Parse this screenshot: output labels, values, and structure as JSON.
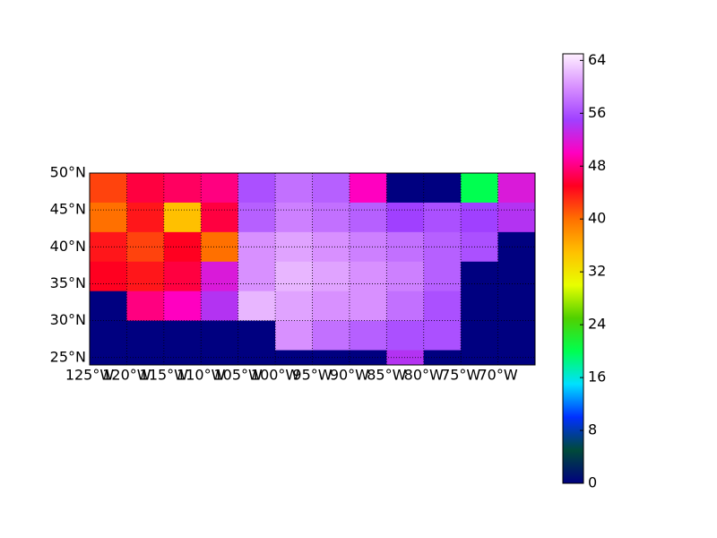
{
  "chart_data": {
    "type": "heatmap-map",
    "xlim": [
      -125,
      -65
    ],
    "ylim": [
      24,
      50
    ],
    "xticks": [
      {
        "value": -125,
        "label": "125°W"
      },
      {
        "value": -120,
        "label": "120°W"
      },
      {
        "value": -115,
        "label": "115°W"
      },
      {
        "value": -110,
        "label": "110°W"
      },
      {
        "value": -105,
        "label": "105°W"
      },
      {
        "value": -100,
        "label": "100°W"
      },
      {
        "value": -95,
        "label": "95°W"
      },
      {
        "value": -90,
        "label": "90°W"
      },
      {
        "value": -85,
        "label": "85°W"
      },
      {
        "value": -80,
        "label": "80°W"
      },
      {
        "value": -75,
        "label": "75°W"
      },
      {
        "value": -70,
        "label": "70°W"
      }
    ],
    "yticks": [
      {
        "value": 25,
        "label": "25°N"
      },
      {
        "value": 30,
        "label": "30°N"
      },
      {
        "value": 35,
        "label": "35°N"
      },
      {
        "value": 40,
        "label": "40°N"
      },
      {
        "value": 45,
        "label": "45°N"
      },
      {
        "value": 50,
        "label": "50°N"
      }
    ],
    "grid": true,
    "lon_edges": [
      -125,
      -120,
      -115,
      -110,
      -105,
      -100,
      -95,
      -90,
      -85,
      -80,
      -75,
      -70,
      -65
    ],
    "lat_edges": [
      50,
      46,
      42,
      38,
      34,
      30,
      26,
      24
    ],
    "values": [
      [
        42,
        46,
        47,
        48,
        56,
        58,
        57,
        50,
        0,
        0,
        20,
        52
      ],
      [
        40,
        44,
        35,
        46,
        57,
        59,
        58,
        57,
        55,
        56,
        55,
        54
      ],
      [
        44,
        42,
        45,
        40,
        60,
        61,
        60,
        59,
        58,
        57,
        56,
        0
      ],
      [
        45,
        44,
        46,
        52,
        60,
        62,
        61,
        60,
        59,
        57,
        0,
        0
      ],
      [
        0,
        48,
        50,
        54,
        62,
        61,
        60,
        60,
        58,
        56,
        0,
        0
      ],
      [
        0,
        0,
        0,
        0,
        0,
        60,
        58,
        57,
        56,
        56,
        0,
        0
      ],
      [
        0,
        0,
        0,
        0,
        0,
        0,
        0,
        0,
        54,
        0,
        0,
        0
      ]
    ],
    "clim": [
      0,
      65
    ],
    "colormap": [
      "#000080",
      "#004a3a",
      "#0030ff",
      "#00e0ff",
      "#00ff50",
      "#50d000",
      "#e8ff00",
      "#ffc000",
      "#ff7000",
      "#ff0020",
      "#ff00c0",
      "#a040ff",
      "#d890ff",
      "#fff0ff"
    ],
    "cticks": [
      0,
      8,
      16,
      24,
      32,
      40,
      48,
      56,
      64
    ]
  }
}
